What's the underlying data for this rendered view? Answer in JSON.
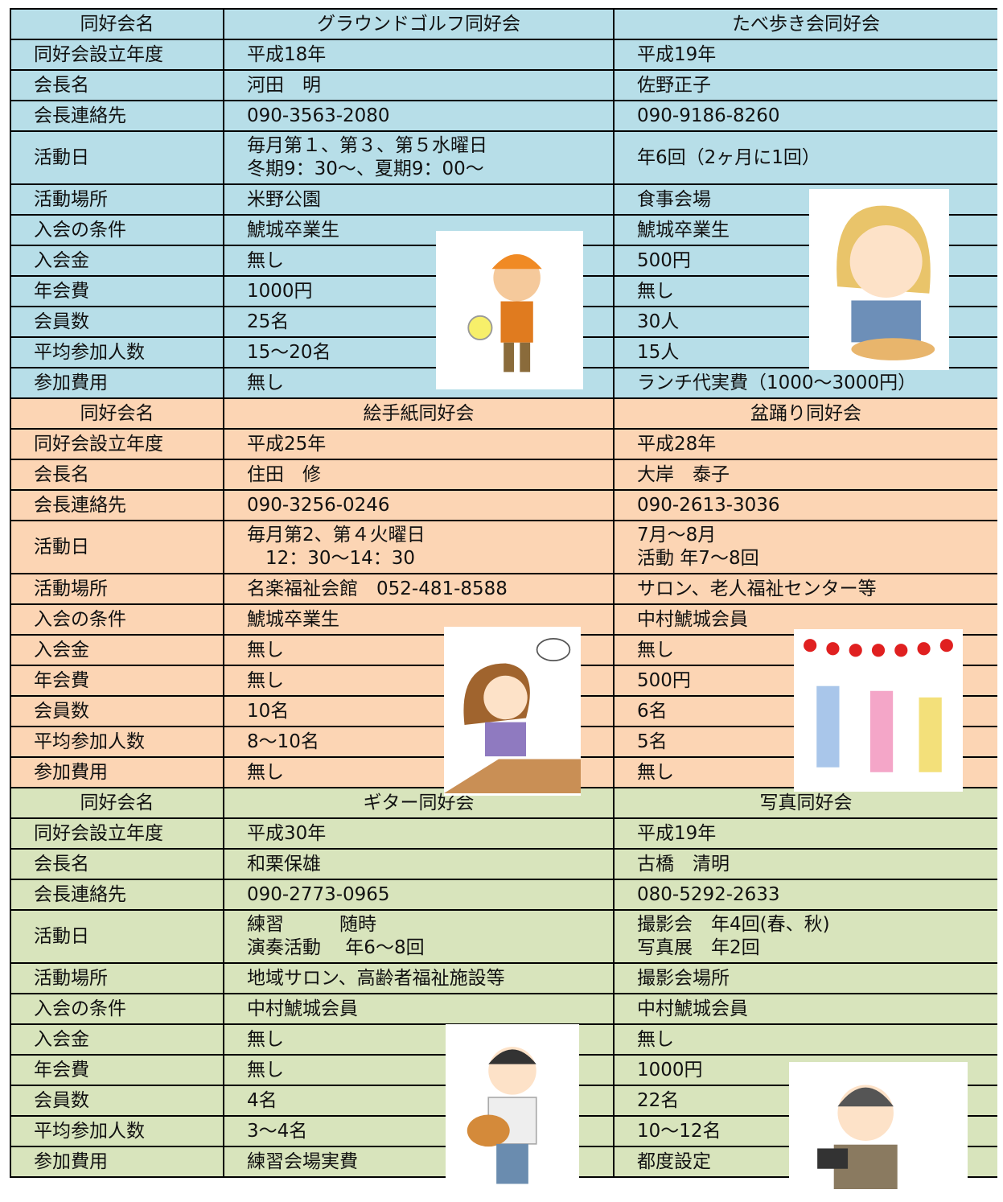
{
  "blocks": [
    {
      "header": [
        "同好会名",
        "グラウンドゴルフ同好会",
        "たべ歩き会同好会"
      ],
      "rows": [
        [
          "同好会設立年度",
          "平成18年",
          "平成19年"
        ],
        [
          "会長名",
          "河田　明",
          "佐野正子"
        ],
        [
          "会長連絡先",
          "090-3563-2080",
          "090-9186-8260"
        ],
        [
          "活動日",
          "毎月第１、第３、第５水曜日\n冬期9：30～、夏期9：00～",
          "年6回（2ヶ月に1回）"
        ],
        [
          "活動場所",
          "米野公園",
          "食事会場"
        ],
        [
          "入会の条件",
          "鯱城卒業生",
          "鯱城卒業生"
        ],
        [
          "入会金",
          "無し",
          "500円"
        ],
        [
          "年会費",
          "1000円",
          "無し"
        ],
        [
          "会員数",
          "25名",
          "30人"
        ],
        [
          "平均参加人数",
          "15～20名",
          "15人"
        ],
        [
          "参加費用",
          "無し",
          "ランチ代実費（1000～3000円）"
        ]
      ]
    },
    {
      "header": [
        "同好会名",
        "絵手紙同好会",
        "盆踊り同好会"
      ],
      "rows": [
        [
          "同好会設立年度",
          "平成25年",
          "平成28年"
        ],
        [
          "会長名",
          "住田　修",
          "大岸　泰子"
        ],
        [
          "会長連絡先",
          "090-3256-0246",
          "090-2613-3036"
        ],
        [
          "活動日",
          "毎月第2、第４火曜日\n　12：30～14：30",
          "7月～8月\n活動 年7～8回"
        ],
        [
          "活動場所",
          "名楽福祉会館　052-481-8588",
          "サロン、老人福祉センター等"
        ],
        [
          "入会の条件",
          "鯱城卒業生",
          "中村鯱城会員"
        ],
        [
          "入会金",
          "無し",
          "無し"
        ],
        [
          "年会費",
          "無し",
          "500円"
        ],
        [
          "会員数",
          "10名",
          "6名"
        ],
        [
          "平均参加人数",
          "8～10名",
          "5名"
        ],
        [
          "参加費用",
          "無し",
          "無し"
        ]
      ]
    },
    {
      "header": [
        "同好会名",
        "ギター同好会",
        "写真同好会"
      ],
      "rows": [
        [
          "同好会設立年度",
          "平成30年",
          "平成19年"
        ],
        [
          "会長名",
          "和栗保雄",
          "古橋　清明"
        ],
        [
          "会長連絡先",
          "090-2773-0965",
          "080-5292-2633"
        ],
        [
          "活動日",
          "練習　　　随時\n演奏活動　 年6～8回",
          "撮影会　年4回(春、秋)\n写真展　年2回"
        ],
        [
          "活動場所",
          "地域サロン、高齢者福祉施設等",
          "撮影会場所"
        ],
        [
          "入会の条件",
          "中村鯱城会員",
          "中村鯱城会員"
        ],
        [
          "入会金",
          "無し",
          "無し"
        ],
        [
          "年会費",
          "無し",
          "1000円"
        ],
        [
          "会員数",
          "4名",
          "22名"
        ],
        [
          "平均参加人数",
          "3～4名",
          "10～12名"
        ],
        [
          "参加費用",
          "練習会場実費",
          "都度設定"
        ]
      ]
    }
  ]
}
